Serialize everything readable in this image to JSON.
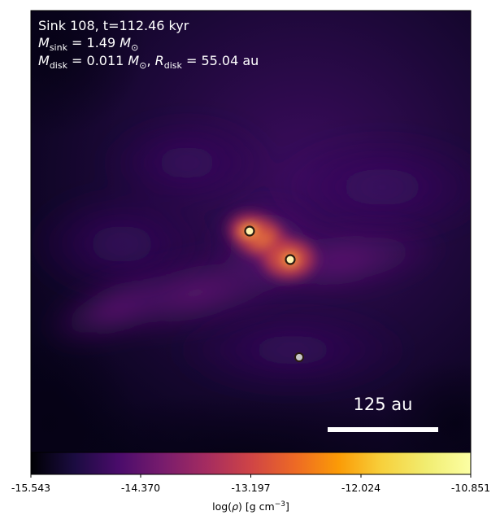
{
  "annotation": {
    "line1": "Sink 108, t=112.46 kyr",
    "line2_symbol": "M",
    "line2_sub": "sink",
    "line2_value": " = 1.49 ",
    "line2_unit_symbol": "M",
    "line2_unit_sub": "⊙",
    "line3_symbol": "M",
    "line3_sub": "disk",
    "line3_value": " = 0.011 ",
    "line3_unit_symbol": "M",
    "line3_unit_sub": "⊙",
    "line3_sep": ", ",
    "line3_r_symbol": "R",
    "line3_r_sub": "disk",
    "line3_r_value": " = 55.04 au"
  },
  "scale_bar": {
    "label": "125 au"
  },
  "colorbar": {
    "ticks": [
      "-15.543",
      "-14.370",
      "-13.197",
      "-12.024",
      "-10.851"
    ],
    "label_prefix": "log(",
    "label_rho": "ρ",
    "label_mid": ") [g cm",
    "label_sup": "−3",
    "label_suffix": "]",
    "colormap": "inferno"
  },
  "sinks": [
    {
      "id": "sink-a",
      "fill": "#fff3b0"
    },
    {
      "id": "sink-b",
      "fill": "#fff3b0"
    },
    {
      "id": "sink-c",
      "fill": "#c8c8c8"
    }
  ],
  "colors": {
    "background_dark": "#0c0420",
    "filament_purple": "#5c137a",
    "hot_orange": "#f0702c",
    "core_yellow": "#fde79c",
    "text": "#ffffff",
    "sink_edge": "#2a1a10"
  }
}
